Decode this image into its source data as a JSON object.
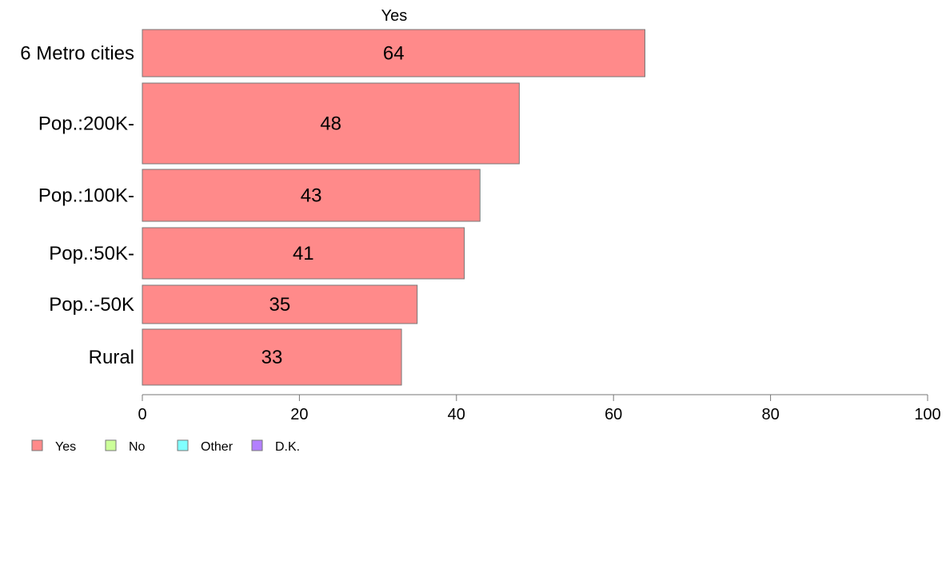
{
  "chart_data": {
    "type": "bar",
    "orientation": "horizontal",
    "title": "Yes",
    "categories": [
      "6 Metro cities",
      "Pop.:200K-",
      "Pop.:100K-",
      "Pop.:50K-",
      "Pop.:-50K",
      "Rural"
    ],
    "series": [
      {
        "name": "Yes",
        "values": [
          64,
          48,
          43,
          41,
          35,
          33
        ],
        "color": "#FF8A8A"
      }
    ],
    "data_labels": [
      "64",
      "48",
      "43",
      "41",
      "35",
      "33"
    ],
    "xlim": [
      0,
      100
    ],
    "xticks": [
      0,
      20,
      40,
      60,
      80,
      100
    ],
    "xtick_labels": [
      "0",
      "20",
      "40",
      "60",
      "80",
      "100"
    ],
    "grid": false,
    "legend": {
      "placement": "bottom-left",
      "entries": [
        {
          "label": "Yes",
          "color": "#FF8A8A"
        },
        {
          "label": "No",
          "color": "#CCFF99"
        },
        {
          "label": "Other",
          "color": "#80FFFF"
        },
        {
          "label": "D.K.",
          "color": "#B380FF"
        }
      ]
    }
  }
}
